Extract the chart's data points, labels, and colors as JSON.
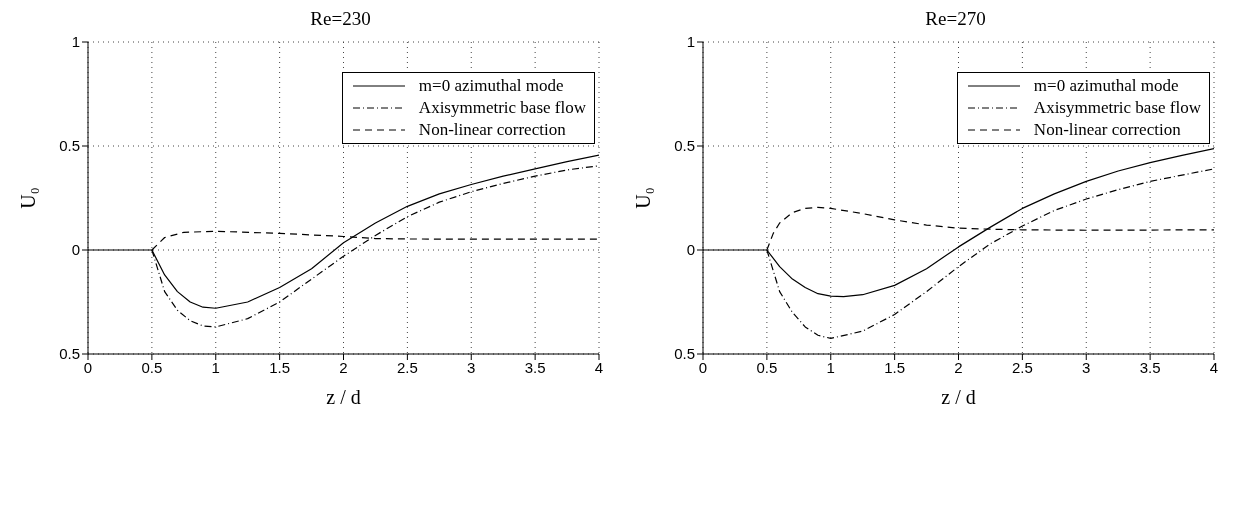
{
  "chart_data": [
    {
      "type": "line",
      "title": "Re=230",
      "xlabel": "z / d",
      "ylabel": "U₀",
      "xlim": [
        0,
        4
      ],
      "xticks": [
        0,
        0.5,
        1,
        1.5,
        2,
        2.5,
        3,
        3.5,
        4
      ],
      "ylim": [
        -0.5,
        1
      ],
      "yticks": [
        {
          "value": -0.5,
          "label": "0.5"
        },
        0,
        0.5,
        1
      ],
      "grid": true,
      "legend": "top right",
      "series": [
        {
          "name": "m=0 azimuthal mode",
          "color": "#000000",
          "line_style": "solid",
          "x": [
            0,
            0.5,
            0.6,
            0.7,
            0.8,
            0.9,
            1.0,
            1.25,
            1.5,
            1.75,
            2.0,
            2.25,
            2.5,
            2.75,
            3.0,
            3.25,
            3.5,
            3.75,
            4
          ],
          "values": [
            0,
            0,
            -0.12,
            -0.2,
            -0.25,
            -0.275,
            -0.28,
            -0.25,
            -0.18,
            -0.09,
            0.035,
            0.13,
            0.21,
            0.27,
            0.315,
            0.355,
            0.39,
            0.425,
            0.456
          ]
        },
        {
          "name": "Axisymmetric base flow",
          "color": "#000000",
          "line_style": "dashdot",
          "x": [
            0.5,
            0.6,
            0.7,
            0.8,
            0.9,
            1.0,
            1.25,
            1.5,
            1.75,
            2.0,
            2.25,
            2.5,
            2.75,
            3.0,
            3.25,
            3.5,
            3.75,
            4
          ],
          "values": [
            0,
            -0.2,
            -0.29,
            -0.34,
            -0.365,
            -0.37,
            -0.33,
            -0.25,
            -0.14,
            -0.03,
            0.07,
            0.16,
            0.23,
            0.28,
            0.32,
            0.355,
            0.385,
            0.405
          ]
        },
        {
          "name": "Non-linear correction",
          "color": "#000000",
          "line_style": "dashed",
          "x": [
            0.5,
            0.6,
            0.75,
            1.0,
            1.5,
            2.0,
            2.25,
            2.5,
            3.0,
            4
          ],
          "values": [
            0,
            0.06,
            0.085,
            0.09,
            0.08,
            0.065,
            0.055,
            0.053,
            0.052,
            0.052
          ]
        }
      ]
    },
    {
      "type": "line",
      "title": "Re=270",
      "xlabel": "z / d",
      "ylabel": "U₀",
      "xlim": [
        0,
        4
      ],
      "xticks": [
        0,
        0.5,
        1,
        1.5,
        2,
        2.5,
        3,
        3.5,
        4
      ],
      "ylim": [
        -0.5,
        1
      ],
      "yticks": [
        {
          "value": -0.5,
          "label": "0.5"
        },
        0,
        0.5,
        1
      ],
      "grid": true,
      "legend": "top right",
      "series": [
        {
          "name": "m=0 azimuthal mode",
          "color": "#000000",
          "line_style": "solid",
          "x": [
            0,
            0.5,
            0.6,
            0.7,
            0.8,
            0.9,
            1.0,
            1.1,
            1.25,
            1.5,
            1.75,
            2.0,
            2.25,
            2.5,
            2.75,
            3.0,
            3.25,
            3.5,
            3.75,
            4
          ],
          "values": [
            0,
            0,
            -0.08,
            -0.14,
            -0.18,
            -0.21,
            -0.222,
            -0.224,
            -0.215,
            -0.17,
            -0.09,
            0.015,
            0.11,
            0.2,
            0.27,
            0.33,
            0.38,
            0.42,
            0.455,
            0.487
          ]
        },
        {
          "name": "Axisymmetric base flow",
          "color": "#000000",
          "line_style": "dashdot",
          "x": [
            0.5,
            0.6,
            0.7,
            0.8,
            0.9,
            1.0,
            1.25,
            1.5,
            1.75,
            2.0,
            2.25,
            2.5,
            2.75,
            3.0,
            3.25,
            3.5,
            3.75,
            4
          ],
          "values": [
            0,
            -0.2,
            -0.3,
            -0.37,
            -0.41,
            -0.425,
            -0.39,
            -0.31,
            -0.2,
            -0.08,
            0.03,
            0.115,
            0.19,
            0.245,
            0.29,
            0.33,
            0.36,
            0.39
          ]
        },
        {
          "name": "Non-linear correction",
          "color": "#000000",
          "line_style": "dashed",
          "x": [
            0.5,
            0.55,
            0.6,
            0.7,
            0.8,
            0.9,
            1.0,
            1.25,
            1.5,
            1.75,
            2.0,
            2.25,
            2.5,
            3.0,
            4
          ],
          "values": [
            0,
            0.08,
            0.13,
            0.18,
            0.2,
            0.205,
            0.2,
            0.175,
            0.145,
            0.12,
            0.105,
            0.1,
            0.097,
            0.095,
            0.097
          ]
        }
      ]
    }
  ]
}
